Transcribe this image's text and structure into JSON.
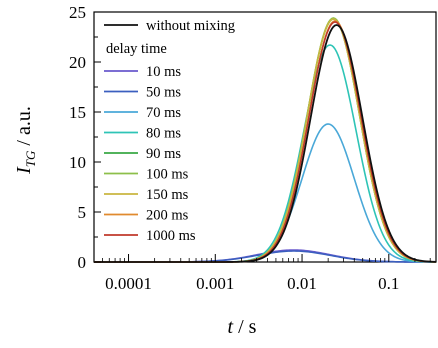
{
  "chart_data": {
    "type": "line",
    "xlabel_symbol": "t",
    "xlabel_unit": " / s",
    "ylabel_symbol": "I",
    "ylabel_sub": "TG",
    "ylabel_unit": " / a.u.",
    "x_scale": "log",
    "xlim": [
      4e-05,
      0.35
    ],
    "ylim": [
      0,
      25
    ],
    "x_ticks": [
      0.0001,
      0.001,
      0.01,
      0.1
    ],
    "x_tick_labels": [
      "0.0001",
      "0.001",
      "0.01",
      "0.1"
    ],
    "y_ticks": [
      0,
      5,
      10,
      15,
      20,
      25
    ],
    "y_tick_labels": [
      "0",
      "5",
      "10",
      "15",
      "20",
      "25"
    ],
    "grid": false,
    "legend_position": "upper-left",
    "legend_group_title": "delay time",
    "series": [
      {
        "name": "without mixing",
        "color": "#111111",
        "peak_x": 0.025,
        "peak_y": 23.7
      },
      {
        "name": "10 ms",
        "color": "#6a5acd",
        "peak_x": 0.008,
        "peak_y": 1.2
      },
      {
        "name": "50 ms",
        "color": "#3b5fbf",
        "peak_x": 0.008,
        "peak_y": 1.1
      },
      {
        "name": "70 ms",
        "color": "#4aa8d8",
        "peak_x": 0.02,
        "peak_y": 13.8
      },
      {
        "name": "80 ms",
        "color": "#2ec4b6",
        "peak_x": 0.021,
        "peak_y": 21.7
      },
      {
        "name": "90 ms",
        "color": "#3aa845",
        "peak_x": 0.023,
        "peak_y": 24.3
      },
      {
        "name": "100 ms",
        "color": "#8dbf4a",
        "peak_x": 0.023,
        "peak_y": 24.4
      },
      {
        "name": "150 ms",
        "color": "#c9b640",
        "peak_x": 0.023,
        "peak_y": 24.3
      },
      {
        "name": "200 ms",
        "color": "#e08a2e",
        "peak_x": 0.024,
        "peak_y": 24.1
      },
      {
        "name": "1000 ms",
        "color": "#c0392b",
        "peak_x": 0.024,
        "peak_y": 24.0
      }
    ]
  }
}
